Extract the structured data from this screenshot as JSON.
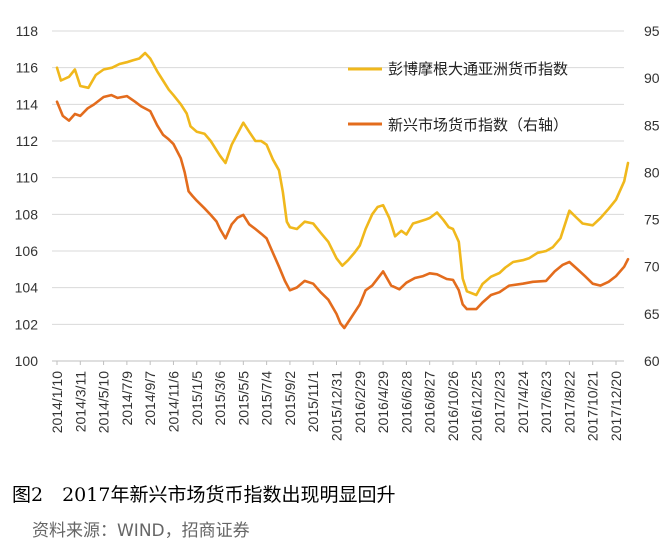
{
  "caption": "图2　2017年新兴市场货币指数出现明显回升",
  "source": "资料来源：WIND，招商证券",
  "chart_data": {
    "type": "line",
    "categories": [
      "2014/1/10",
      "2014/3/11",
      "2014/5/10",
      "2014/7/9",
      "2014/9/7",
      "2014/11/6",
      "2015/1/5",
      "2015/3/6",
      "2015/5/5",
      "2015/7/4",
      "2015/9/2",
      "2015/11/1",
      "2015/12/31",
      "2016/2/29",
      "2016/4/29",
      "2016/6/28",
      "2016/8/27",
      "2016/10/26",
      "2016/12/25",
      "2017/2/23",
      "2017/4/24",
      "2017/6/23",
      "2017/8/22",
      "2017/10/21",
      "2017/12/20"
    ],
    "yticks_left": [
      "100",
      "102",
      "104",
      "106",
      "108",
      "110",
      "112",
      "114",
      "116",
      "118"
    ],
    "yticks_right": [
      "60",
      "65",
      "70",
      "75",
      "80",
      "85",
      "90",
      "95"
    ],
    "ylim_left": [
      100,
      118
    ],
    "ylim_right": [
      60,
      95
    ],
    "series": [
      {
        "name": "彭博摩根大通亚洲货币指数",
        "axis": "left",
        "color": "#f0b81c",
        "values": [
          {
            "x": "2014/1/10",
            "y": 116.0
          },
          {
            "x": "2014/1/20",
            "y": 115.3
          },
          {
            "x": "2014/2/10",
            "y": 115.5
          },
          {
            "x": "2014/2/25",
            "y": 115.9
          },
          {
            "x": "2014/3/11",
            "y": 115.0
          },
          {
            "x": "2014/4/1",
            "y": 114.9
          },
          {
            "x": "2014/4/20",
            "y": 115.6
          },
          {
            "x": "2014/5/10",
            "y": 115.9
          },
          {
            "x": "2014/6/1",
            "y": 116.0
          },
          {
            "x": "2014/6/20",
            "y": 116.2
          },
          {
            "x": "2014/7/9",
            "y": 116.3
          },
          {
            "x": "2014/7/25",
            "y": 116.4
          },
          {
            "x": "2014/8/10",
            "y": 116.5
          },
          {
            "x": "2014/8/25",
            "y": 116.8
          },
          {
            "x": "2014/9/7",
            "y": 116.5
          },
          {
            "x": "2014/9/25",
            "y": 115.8
          },
          {
            "x": "2014/10/10",
            "y": 115.3
          },
          {
            "x": "2014/10/25",
            "y": 114.8
          },
          {
            "x": "2014/11/6",
            "y": 114.5
          },
          {
            "x": "2014/11/25",
            "y": 114.0
          },
          {
            "x": "2014/12/10",
            "y": 113.5
          },
          {
            "x": "2014/12/20",
            "y": 112.8
          },
          {
            "x": "2015/1/5",
            "y": 112.5
          },
          {
            "x": "2015/1/25",
            "y": 112.4
          },
          {
            "x": "2015/2/10",
            "y": 112.0
          },
          {
            "x": "2015/2/25",
            "y": 111.5
          },
          {
            "x": "2015/3/6",
            "y": 111.2
          },
          {
            "x": "2015/3/20",
            "y": 110.8
          },
          {
            "x": "2015/4/5",
            "y": 111.8
          },
          {
            "x": "2015/4/20",
            "y": 112.4
          },
          {
            "x": "2015/5/5",
            "y": 113.0
          },
          {
            "x": "2015/5/20",
            "y": 112.5
          },
          {
            "x": "2015/6/5",
            "y": 112.0
          },
          {
            "x": "2015/6/20",
            "y": 112.0
          },
          {
            "x": "2015/7/4",
            "y": 111.8
          },
          {
            "x": "2015/7/20",
            "y": 111.0
          },
          {
            "x": "2015/8/5",
            "y": 110.4
          },
          {
            "x": "2015/8/15",
            "y": 109.2
          },
          {
            "x": "2015/8/25",
            "y": 107.6
          },
          {
            "x": "2015/9/2",
            "y": 107.3
          },
          {
            "x": "2015/9/20",
            "y": 107.2
          },
          {
            "x": "2015/10/10",
            "y": 107.6
          },
          {
            "x": "2015/11/1",
            "y": 107.5
          },
          {
            "x": "2015/11/20",
            "y": 107.0
          },
          {
            "x": "2015/12/10",
            "y": 106.5
          },
          {
            "x": "2015/12/31",
            "y": 105.6
          },
          {
            "x": "2016/1/15",
            "y": 105.2
          },
          {
            "x": "2016/1/30",
            "y": 105.5
          },
          {
            "x": "2016/2/15",
            "y": 105.9
          },
          {
            "x": "2016/2/29",
            "y": 106.3
          },
          {
            "x": "2016/3/15",
            "y": 107.2
          },
          {
            "x": "2016/4/1",
            "y": 108.0
          },
          {
            "x": "2016/4/15",
            "y": 108.4
          },
          {
            "x": "2016/4/29",
            "y": 108.5
          },
          {
            "x": "2016/5/15",
            "y": 107.8
          },
          {
            "x": "2016/5/30",
            "y": 106.8
          },
          {
            "x": "2016/6/15",
            "y": 107.1
          },
          {
            "x": "2016/6/28",
            "y": 106.9
          },
          {
            "x": "2016/7/15",
            "y": 107.5
          },
          {
            "x": "2016/7/30",
            "y": 107.6
          },
          {
            "x": "2016/8/15",
            "y": 107.7
          },
          {
            "x": "2016/8/27",
            "y": 107.8
          },
          {
            "x": "2016/9/15",
            "y": 108.1
          },
          {
            "x": "2016/10/1",
            "y": 107.7
          },
          {
            "x": "2016/10/15",
            "y": 107.3
          },
          {
            "x": "2016/10/26",
            "y": 107.2
          },
          {
            "x": "2016/11/10",
            "y": 106.5
          },
          {
            "x": "2016/11/20",
            "y": 104.5
          },
          {
            "x": "2016/12/1",
            "y": 103.8
          },
          {
            "x": "2016/12/25",
            "y": 103.6
          },
          {
            "x": "2017/1/10",
            "y": 104.2
          },
          {
            "x": "2017/2/1",
            "y": 104.6
          },
          {
            "x": "2017/2/23",
            "y": 104.8
          },
          {
            "x": "2017/3/10",
            "y": 105.1
          },
          {
            "x": "2017/3/30",
            "y": 105.4
          },
          {
            "x": "2017/4/24",
            "y": 105.5
          },
          {
            "x": "2017/5/10",
            "y": 105.6
          },
          {
            "x": "2017/6/1",
            "y": 105.9
          },
          {
            "x": "2017/6/23",
            "y": 106.0
          },
          {
            "x": "2017/7/10",
            "y": 106.2
          },
          {
            "x": "2017/7/30",
            "y": 106.7
          },
          {
            "x": "2017/8/22",
            "y": 108.2
          },
          {
            "x": "2017/9/10",
            "y": 107.8
          },
          {
            "x": "2017/9/25",
            "y": 107.5
          },
          {
            "x": "2017/10/21",
            "y": 107.4
          },
          {
            "x": "2017/11/10",
            "y": 107.8
          },
          {
            "x": "2017/12/1",
            "y": 108.3
          },
          {
            "x": "2017/12/20",
            "y": 108.8
          },
          {
            "x": "2018/1/10",
            "y": 109.8
          },
          {
            "x": "2018/1/20",
            "y": 110.8
          }
        ]
      },
      {
        "name": "新兴市场货币指数（右轴）",
        "axis": "right",
        "color": "#e36c1d",
        "values": [
          {
            "x": "2014/1/10",
            "y": 87.5
          },
          {
            "x": "2014/1/25",
            "y": 86.0
          },
          {
            "x": "2014/2/10",
            "y": 85.5
          },
          {
            "x": "2014/2/25",
            "y": 86.2
          },
          {
            "x": "2014/3/11",
            "y": 86.0
          },
          {
            "x": "2014/3/30",
            "y": 86.8
          },
          {
            "x": "2014/4/15",
            "y": 87.2
          },
          {
            "x": "2014/5/10",
            "y": 88.0
          },
          {
            "x": "2014/5/30",
            "y": 88.2
          },
          {
            "x": "2014/6/15",
            "y": 87.9
          },
          {
            "x": "2014/7/9",
            "y": 88.1
          },
          {
            "x": "2014/7/30",
            "y": 87.5
          },
          {
            "x": "2014/8/15",
            "y": 87.0
          },
          {
            "x": "2014/9/7",
            "y": 86.5
          },
          {
            "x": "2014/9/25",
            "y": 85.0
          },
          {
            "x": "2014/10/10",
            "y": 84.0
          },
          {
            "x": "2014/10/25",
            "y": 83.5
          },
          {
            "x": "2014/11/6",
            "y": 83.0
          },
          {
            "x": "2014/11/25",
            "y": 81.5
          },
          {
            "x": "2014/12/5",
            "y": 80.0
          },
          {
            "x": "2014/12/15",
            "y": 78.0
          },
          {
            "x": "2014/12/25",
            "y": 77.5
          },
          {
            "x": "2015/1/5",
            "y": 77.0
          },
          {
            "x": "2015/1/25",
            "y": 76.2
          },
          {
            "x": "2015/2/10",
            "y": 75.5
          },
          {
            "x": "2015/2/25",
            "y": 74.8
          },
          {
            "x": "2015/3/6",
            "y": 74.0
          },
          {
            "x": "2015/3/20",
            "y": 73.0
          },
          {
            "x": "2015/4/5",
            "y": 74.5
          },
          {
            "x": "2015/4/20",
            "y": 75.2
          },
          {
            "x": "2015/5/5",
            "y": 75.5
          },
          {
            "x": "2015/5/20",
            "y": 74.5
          },
          {
            "x": "2015/6/5",
            "y": 74.0
          },
          {
            "x": "2015/6/20",
            "y": 73.5
          },
          {
            "x": "2015/7/4",
            "y": 73.0
          },
          {
            "x": "2015/7/20",
            "y": 71.5
          },
          {
            "x": "2015/8/5",
            "y": 70.0
          },
          {
            "x": "2015/8/20",
            "y": 68.5
          },
          {
            "x": "2015/9/2",
            "y": 67.5
          },
          {
            "x": "2015/9/20",
            "y": 67.8
          },
          {
            "x": "2015/10/10",
            "y": 68.5
          },
          {
            "x": "2015/11/1",
            "y": 68.2
          },
          {
            "x": "2015/11/20",
            "y": 67.3
          },
          {
            "x": "2015/12/10",
            "y": 66.5
          },
          {
            "x": "2015/12/31",
            "y": 65.0
          },
          {
            "x": "2016/1/10",
            "y": 64.0
          },
          {
            "x": "2016/1/20",
            "y": 63.5
          },
          {
            "x": "2016/2/5",
            "y": 64.5
          },
          {
            "x": "2016/2/29",
            "y": 66.0
          },
          {
            "x": "2016/3/15",
            "y": 67.5
          },
          {
            "x": "2016/4/1",
            "y": 68.0
          },
          {
            "x": "2016/4/29",
            "y": 69.5
          },
          {
            "x": "2016/5/20",
            "y": 68.0
          },
          {
            "x": "2016/6/10",
            "y": 67.6
          },
          {
            "x": "2016/6/28",
            "y": 68.3
          },
          {
            "x": "2016/7/20",
            "y": 68.8
          },
          {
            "x": "2016/8/10",
            "y": 69.0
          },
          {
            "x": "2016/8/27",
            "y": 69.3
          },
          {
            "x": "2016/9/15",
            "y": 69.2
          },
          {
            "x": "2016/10/10",
            "y": 68.7
          },
          {
            "x": "2016/10/26",
            "y": 68.6
          },
          {
            "x": "2016/11/10",
            "y": 67.5
          },
          {
            "x": "2016/11/20",
            "y": 66.0
          },
          {
            "x": "2016/12/1",
            "y": 65.5
          },
          {
            "x": "2016/12/25",
            "y": 65.5
          },
          {
            "x": "2017/1/10",
            "y": 66.2
          },
          {
            "x": "2017/2/1",
            "y": 67.0
          },
          {
            "x": "2017/2/23",
            "y": 67.3
          },
          {
            "x": "2017/3/20",
            "y": 68.0
          },
          {
            "x": "2017/4/24",
            "y": 68.2
          },
          {
            "x": "2017/5/20",
            "y": 68.4
          },
          {
            "x": "2017/6/23",
            "y": 68.5
          },
          {
            "x": "2017/7/15",
            "y": 69.5
          },
          {
            "x": "2017/8/5",
            "y": 70.2
          },
          {
            "x": "2017/8/22",
            "y": 70.5
          },
          {
            "x": "2017/9/10",
            "y": 69.8
          },
          {
            "x": "2017/10/1",
            "y": 69.0
          },
          {
            "x": "2017/10/21",
            "y": 68.2
          },
          {
            "x": "2017/11/10",
            "y": 68.0
          },
          {
            "x": "2017/12/1",
            "y": 68.4
          },
          {
            "x": "2017/12/20",
            "y": 69.0
          },
          {
            "x": "2018/1/10",
            "y": 70.0
          },
          {
            "x": "2018/1/20",
            "y": 70.8
          }
        ]
      }
    ],
    "legend": "upper-right"
  }
}
